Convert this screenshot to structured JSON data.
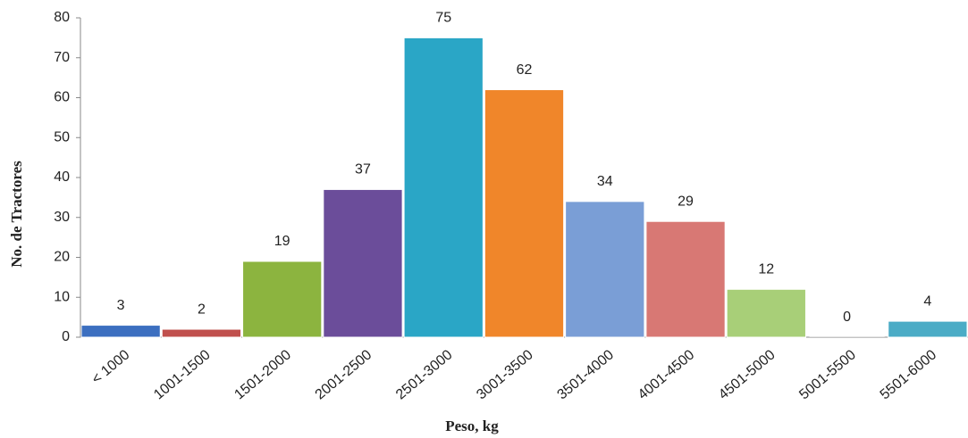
{
  "chart_data": {
    "type": "bar",
    "categories": [
      "< 1000",
      "1001-1500",
      "1501-2000",
      "2001-2500",
      "2501-3000",
      "3001-3500",
      "3501-4000",
      "4001-4500",
      "4501-5000",
      "5001-5500",
      "5501-6000"
    ],
    "values": [
      3,
      2,
      19,
      37,
      75,
      62,
      34,
      29,
      12,
      0,
      4
    ],
    "colors": [
      "#3c6fc0",
      "#c0504d",
      "#8cb43f",
      "#6b4d9a",
      "#2aa6c6",
      "#f0862a",
      "#7a9ed6",
      "#d87874",
      "#a8cf78",
      "#bfbfbf",
      "#4bacc6"
    ],
    "x_label": "Peso,  kg",
    "y_label": "No. de Tractores",
    "ylim": [
      0,
      80
    ],
    "yticks": [
      0,
      10,
      20,
      30,
      40,
      50,
      60,
      70,
      80
    ]
  }
}
